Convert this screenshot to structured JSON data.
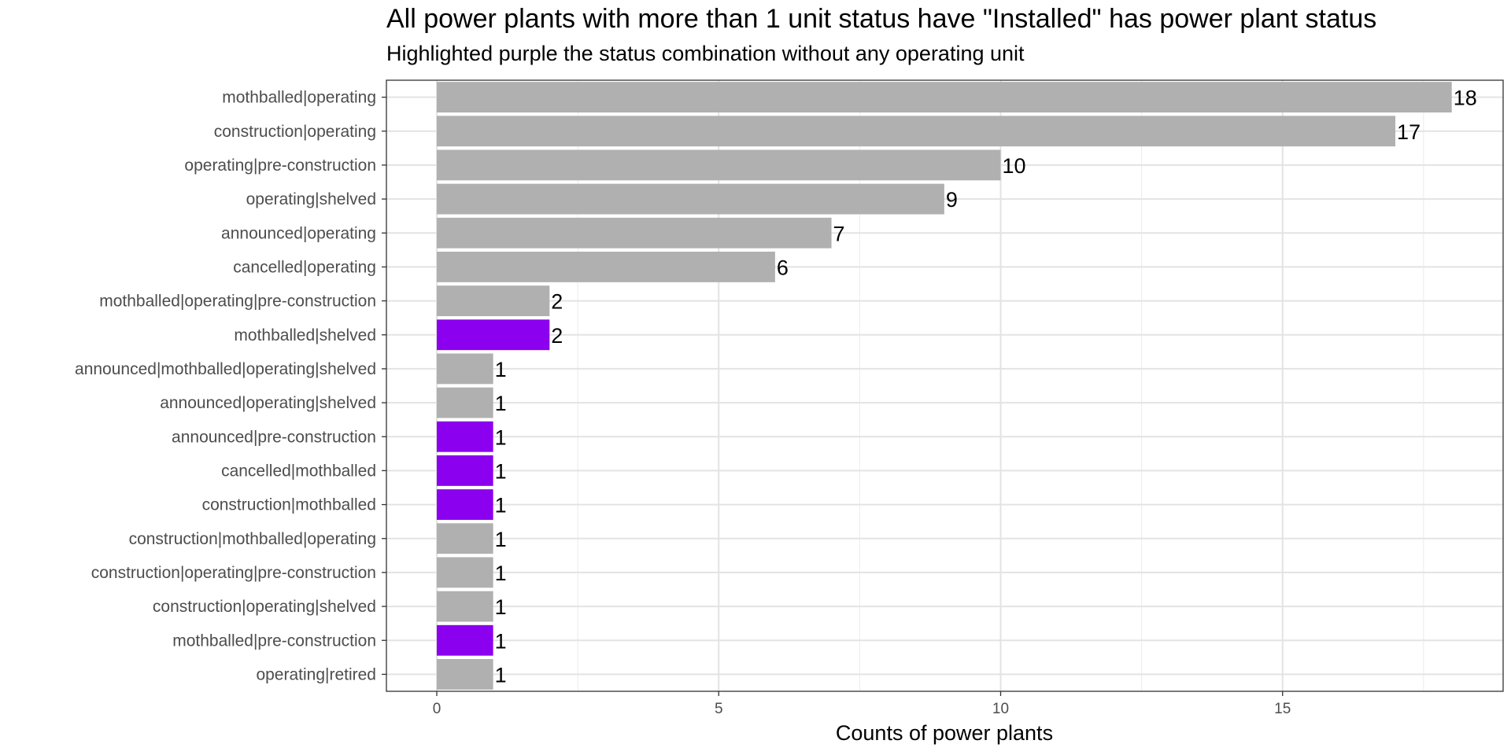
{
  "chart_data": {
    "type": "bar",
    "orientation": "horizontal",
    "title": "All power plants with more than 1 unit status have \"Installed\" has power plant status",
    "subtitle": "Highlighted purple the status combination without any operating unit",
    "xlabel": "Counts of power plants",
    "ylabel": "",
    "xlim": [
      0,
      19
    ],
    "xticks": [
      0,
      5,
      10,
      15
    ],
    "grid": true,
    "legend": "none",
    "colors": {
      "default": "#b0b0b0",
      "highlight": "#8b00ee"
    },
    "categories": [
      "operating|retired",
      "mothballed|pre-construction",
      "construction|operating|shelved",
      "construction|operating|pre-construction",
      "construction|mothballed|operating",
      "construction|mothballed",
      "cancelled|mothballed",
      "announced|pre-construction",
      "announced|operating|shelved",
      "announced|mothballed|operating|shelved",
      "mothballed|shelved",
      "mothballed|operating|pre-construction",
      "cancelled|operating",
      "announced|operating",
      "operating|shelved",
      "operating|pre-construction",
      "construction|operating",
      "mothballed|operating"
    ],
    "values": [
      1,
      1,
      1,
      1,
      1,
      1,
      1,
      1,
      1,
      1,
      2,
      2,
      6,
      7,
      9,
      10,
      17,
      18
    ],
    "highlighted": [
      false,
      true,
      false,
      false,
      false,
      true,
      true,
      true,
      false,
      false,
      true,
      false,
      false,
      false,
      false,
      false,
      false,
      false
    ]
  }
}
